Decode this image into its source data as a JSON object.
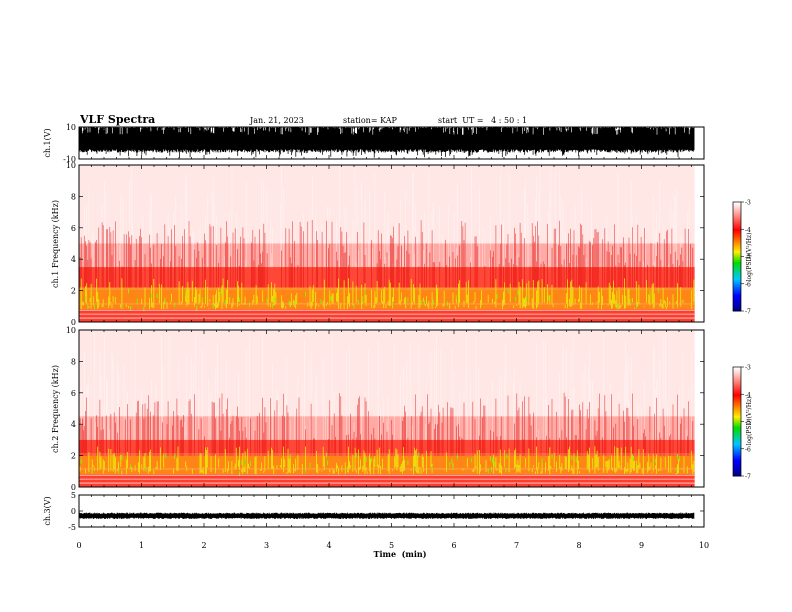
{
  "header": {
    "title": "VLF Spectra",
    "date": "Jan. 21, 2023",
    "station": "station= KAP",
    "start": "start  UT =   4 : 50 : 1"
  },
  "colors": {
    "spectrogram_low": "#ffffff",
    "spectrogram_mid": "#ff2a1a",
    "spectrogram_high": "#e8ff00",
    "waveform": "#000000"
  },
  "chart_data": [
    {
      "type": "line",
      "name": "ch1-waveform",
      "ylabel": "ch.1(V)",
      "ylim": [
        -10,
        10
      ],
      "yticks": [
        "10",
        "-10"
      ],
      "xlim": [
        0,
        10
      ],
      "description_values": "dense broadband signal spanning roughly -6 to +10 V"
    },
    {
      "type": "heatmap",
      "name": "ch1-spectrogram",
      "ylabel": "ch.1 Frequency (kHz)",
      "ylim": [
        0,
        10
      ],
      "yticks": [
        0,
        2,
        4,
        6,
        8,
        10
      ],
      "xlim": [
        0,
        10
      ],
      "colorbar": {
        "label": "log(PSD)(V²/Hz)",
        "ticks": [
          -3,
          -4,
          -5,
          -6,
          -7
        ],
        "range": [
          -7,
          -3
        ]
      },
      "bands_khz": {
        "intense_low": [
          0.8,
          2.2
        ],
        "moderate": [
          2.2,
          3.5
        ],
        "weak": [
          3.5,
          10
        ]
      }
    },
    {
      "type": "heatmap",
      "name": "ch2-spectrogram",
      "ylabel": "ch.2 Frequency (kHz)",
      "ylim": [
        0,
        10
      ],
      "yticks": [
        0,
        2,
        4,
        6,
        8,
        10
      ],
      "xlim": [
        0,
        10
      ],
      "colorbar": {
        "label": "log(PSD)(V²/Hz)",
        "ticks": [
          -3,
          -4,
          -5,
          -6,
          -7
        ],
        "range": [
          -7,
          -3
        ]
      },
      "bands_khz": {
        "intense_low": [
          0.8,
          2.0
        ],
        "moderate": [
          2.0,
          3.0
        ],
        "weak": [
          3.0,
          10
        ]
      }
    },
    {
      "type": "line",
      "name": "ch3-waveform",
      "ylabel": "ch.3(V)",
      "ylim": [
        -5,
        5
      ],
      "yticks": [
        "5",
        "0",
        "-5"
      ],
      "xlim": [
        0,
        10
      ],
      "level_v": -1.5
    }
  ],
  "xaxis": {
    "label": "Time  (min)",
    "ticks": [
      "0",
      "1",
      "2",
      "3",
      "4",
      "5",
      "6",
      "7",
      "8",
      "9",
      "10"
    ],
    "data_end_min": 9.85
  }
}
